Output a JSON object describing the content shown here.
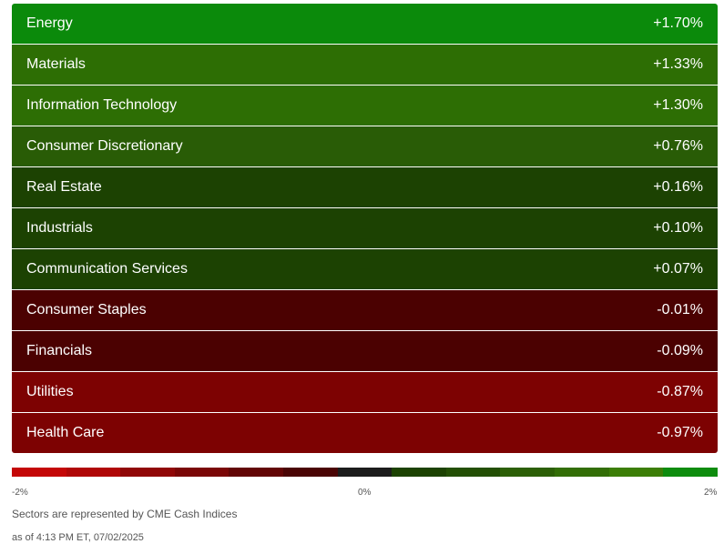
{
  "sectors": [
    {
      "name": "Energy",
      "change": "+1.70%",
      "color": "#0b8a0b"
    },
    {
      "name": "Materials",
      "change": "+1.33%",
      "color": "#2d6e04"
    },
    {
      "name": "Information Technology",
      "change": "+1.30%",
      "color": "#2d6e04"
    },
    {
      "name": "Consumer Discretionary",
      "change": "+0.76%",
      "color": "#295c06"
    },
    {
      "name": "Real Estate",
      "change": "+0.16%",
      "color": "#1c4202"
    },
    {
      "name": "Industrials",
      "change": "+0.10%",
      "color": "#1c4202"
    },
    {
      "name": "Communication Services",
      "change": "+0.07%",
      "color": "#1c4202"
    },
    {
      "name": "Consumer Staples",
      "change": "-0.01%",
      "color": "#4b0101"
    },
    {
      "name": "Financials",
      "change": "-0.09%",
      "color": "#4b0101"
    },
    {
      "name": "Utilities",
      "change": "-0.87%",
      "color": "#7d0202"
    },
    {
      "name": "Health Care",
      "change": "-0.97%",
      "color": "#7d0202"
    }
  ],
  "scale": {
    "min_label": "-2%",
    "mid_label": "0%",
    "max_label": "2%",
    "colors": [
      "#c40707",
      "#b00707",
      "#900707",
      "#7a0606",
      "#620505",
      "#4a0404",
      "#1c1c1c",
      "#1c4202",
      "#234f04",
      "#2c5f06",
      "#336e06",
      "#3c7e06",
      "#0e8c0e"
    ]
  },
  "footer": {
    "source_note": "Sectors are represented by CME Cash Indices",
    "as_of": "as of 4:13 PM ET, 07/02/2025"
  }
}
